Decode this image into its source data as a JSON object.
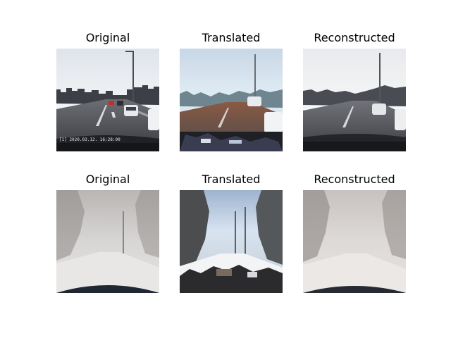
{
  "figure": {
    "rows": [
      {
        "panels": [
          {
            "title": "Original",
            "overlay_text": "[1] 2020.03.12. 16:28:00"
          },
          {
            "title": "Translated"
          },
          {
            "title": "Reconstructed"
          }
        ]
      },
      {
        "panels": [
          {
            "title": "Original"
          },
          {
            "title": "Translated"
          },
          {
            "title": "Reconstructed"
          }
        ]
      }
    ]
  },
  "colors": {
    "background": "#ffffff",
    "title_text": "#000000"
  }
}
